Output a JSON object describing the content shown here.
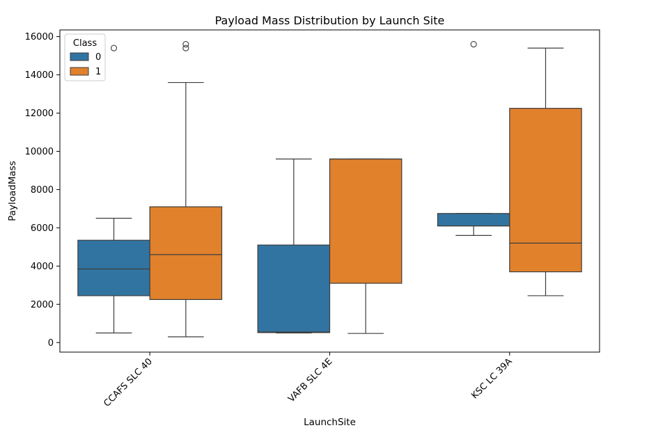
{
  "chart_data": {
    "type": "box",
    "title": "Payload Mass Distribution by Launch Site",
    "xlabel": "LaunchSite",
    "ylabel": "PayloadMass",
    "categories": [
      "CCAFS SLC 40",
      "VAFB SLC 4E",
      "KSC LC 39A"
    ],
    "ylim": [
      -500,
      16350
    ],
    "yticks": [
      0,
      2000,
      4000,
      6000,
      8000,
      10000,
      12000,
      14000,
      16000
    ],
    "ytick_labels": [
      "0",
      "2000",
      "4000",
      "6000",
      "8000",
      "10000",
      "12000",
      "14000",
      "16000"
    ],
    "grid": false,
    "legend": {
      "title": "Class",
      "placement": "top-left"
    },
    "series": [
      {
        "name": "0",
        "color": "#3274a1",
        "boxes": [
          {
            "category": "CCAFS SLC 40",
            "whisker_low": 500,
            "q1": 2450,
            "median": 3850,
            "q3": 5350,
            "whisker_high": 6500,
            "outliers": [
              15400
            ]
          },
          {
            "category": "VAFB SLC 4E",
            "whisker_low": 500,
            "q1": 520,
            "median": 550,
            "q3": 5100,
            "whisker_high": 9600,
            "outliers": []
          },
          {
            "category": "KSC LC 39A",
            "whisker_low": 5600,
            "q1": 6100,
            "median": 6100,
            "q3": 6750,
            "whisker_high": 6750,
            "outliers": [
              15600
            ]
          }
        ]
      },
      {
        "name": "1",
        "color": "#e1812c",
        "boxes": [
          {
            "category": "CCAFS SLC 40",
            "whisker_low": 300,
            "q1": 2250,
            "median": 4600,
            "q3": 7100,
            "whisker_high": 13600,
            "outliers": [
              15400,
              15600
            ]
          },
          {
            "category": "VAFB SLC 4E",
            "whisker_low": 475,
            "q1": 3100,
            "median": 9600,
            "q3": 9600,
            "whisker_high": 9600,
            "outliers": []
          },
          {
            "category": "KSC LC 39A",
            "whisker_low": 2450,
            "q1": 3700,
            "median": 5200,
            "q3": 12250,
            "whisker_high": 15400,
            "outliers": []
          }
        ]
      }
    ]
  }
}
